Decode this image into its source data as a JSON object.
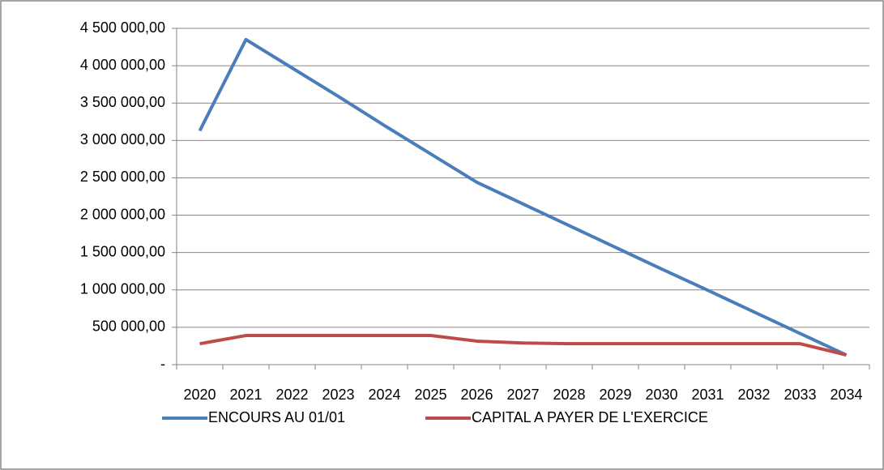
{
  "chart_data": {
    "type": "line",
    "categories": [
      "2020",
      "2021",
      "2022",
      "2023",
      "2024",
      "2025",
      "2026",
      "2027",
      "2028",
      "2029",
      "2030",
      "2031",
      "2032",
      "2033",
      "2034"
    ],
    "series": [
      {
        "name": "ENCOURS AU 01/01",
        "color": "#4a7ebb",
        "values": [
          3130000,
          4350000,
          3970000,
          3590000,
          3200000,
          2820000,
          2440000,
          2150000,
          1860000,
          1570000,
          1280000,
          995000,
          706000,
          417000,
          130000
        ]
      },
      {
        "name": "CAPITAL A PAYER DE L'EXERCICE",
        "color": "#be4b48",
        "values": [
          280000,
          390000,
          390000,
          390000,
          390000,
          390000,
          315000,
          290000,
          280000,
          280000,
          280000,
          280000,
          280000,
          280000,
          130000
        ]
      }
    ],
    "ylim": [
      0,
      4500000
    ],
    "yticks": [
      {
        "value": 0,
        "label": "-"
      },
      {
        "value": 500000,
        "label": "500 000,00"
      },
      {
        "value": 1000000,
        "label": "1 000 000,00"
      },
      {
        "value": 1500000,
        "label": "1 500 000,00"
      },
      {
        "value": 2000000,
        "label": "2 000 000,00"
      },
      {
        "value": 2500000,
        "label": "2 500 000,00"
      },
      {
        "value": 3000000,
        "label": "3 000 000,00"
      },
      {
        "value": 3500000,
        "label": "3 500 000,00"
      },
      {
        "value": 4000000,
        "label": "4 000 000,00"
      },
      {
        "value": 4500000,
        "label": "4 500 000,00"
      }
    ],
    "grid": true,
    "legend": "bottom"
  }
}
